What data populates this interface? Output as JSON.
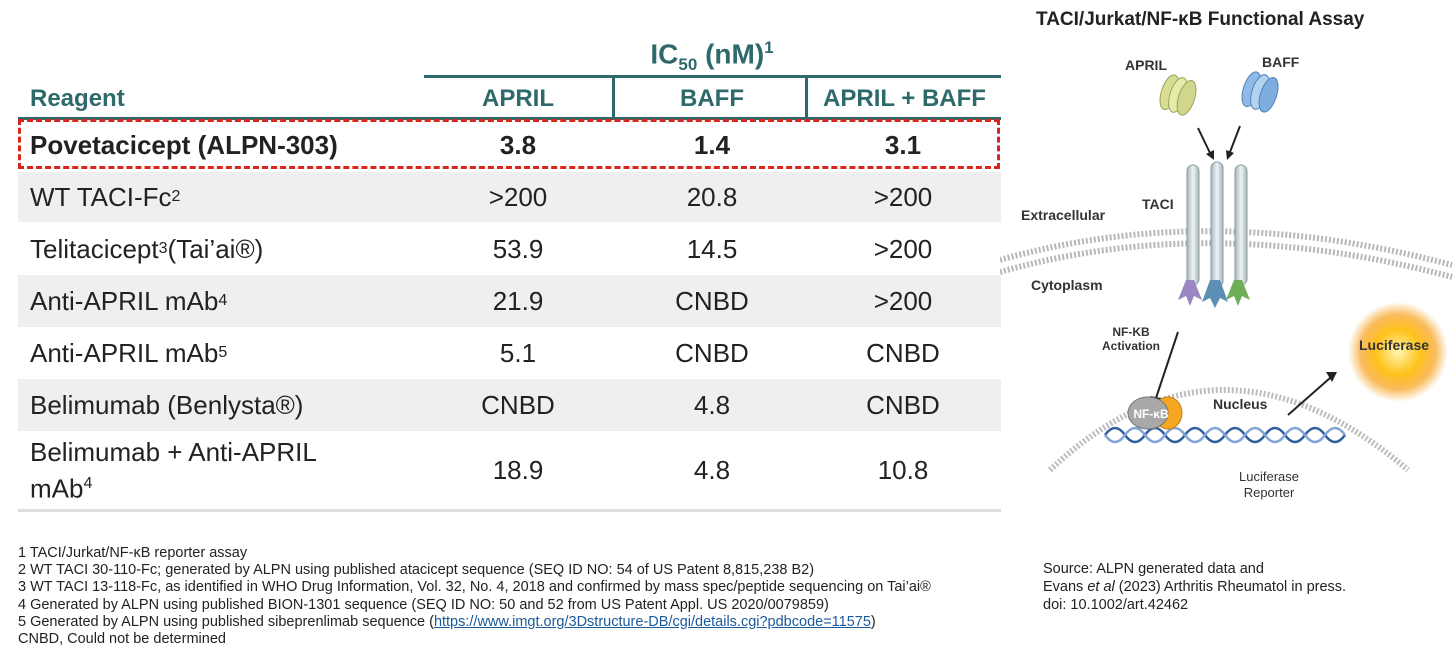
{
  "table": {
    "ic50_title": "IC",
    "ic50_sub": "50",
    "ic50_unit": " (nM)",
    "ic50_sup": "1",
    "headers": {
      "reagent": "Reagent",
      "april": "APRIL",
      "baff": "BAFF",
      "both": "APRIL + BAFF"
    },
    "rows": [
      {
        "name": "Povetacicept (ALPN-303)",
        "sup": "",
        "suffix": "",
        "april": "3.8",
        "baff": "1.4",
        "both": "3.1"
      },
      {
        "name": "WT TACI-Fc",
        "sup": "2",
        "suffix": "",
        "april": ">200",
        "baff": "20.8",
        "both": ">200"
      },
      {
        "name": "Telitacicept",
        "sup": "3",
        "suffix": " (Tai’ai®)",
        "april": "53.9",
        "baff": "14.5",
        "both": ">200"
      },
      {
        "name": "Anti-APRIL mAb",
        "sup": "4",
        "suffix": "",
        "april": "21.9",
        "baff": "CNBD",
        "both": ">200"
      },
      {
        "name": "Anti-APRIL mAb",
        "sup": "5",
        "suffix": "",
        "april": "5.1",
        "baff": "CNBD",
        "both": "CNBD"
      },
      {
        "name": "Belimumab (Benlysta®)",
        "sup": "",
        "suffix": "",
        "april": "CNBD",
        "baff": "4.8",
        "both": "CNBD"
      },
      {
        "name_line1": "Belimumab + Anti-APRIL",
        "name_line2": "mAb",
        "sup": "4",
        "april": "18.9",
        "baff": "4.8",
        "both": "10.8"
      }
    ]
  },
  "footnotes": [
    "1 TACI/Jurkat/NF-κB  reporter assay",
    "2 WT TACI 30-110-Fc; generated by ALPN using published atacicept sequence (SEQ ID NO: 54 of US Patent 8,815,238 B2)",
    "3 WT TACI 13-118-Fc, as identified in WHO Drug Information,  Vol. 32, No. 4, 2018 and confirmed by mass spec/peptide sequencing on Tai’ai®",
    "4 Generated by ALPN using published BION-1301 sequence (SEQ ID NO:  50 and 52 from US Patent Appl. US 2020/0079859)",
    "CNBD, Could not be determined"
  ],
  "footnote5": {
    "prefix": "5 Generated by ALPN using published sibeprenlimab sequence (",
    "link": "https://www.imgt.org/3Dstructure-DB/cgi/details.cgi?pdbcode=11575",
    "suffix": ")"
  },
  "diagram": {
    "title": "TACI/Jurkat/NF-κB Functional  Assay",
    "april": "APRIL",
    "baff": "BAFF",
    "taci": "TACI",
    "extracellular": "Extracellular",
    "cytoplasm": "Cytoplasm",
    "nfkb_activation_1": "NF-KB",
    "nfkb_activation_2": "Activation",
    "nfkb_complex": "NF-κB",
    "nucleus": "Nucleus",
    "luciferase": "Luciferase",
    "reporter_1": "Luciferase",
    "reporter_2": "Reporter"
  },
  "source": {
    "line1": "Source: ALPN generated data and",
    "line2_pre": "Evans ",
    "line2_italic": "et al",
    "line2_post": " (2023) Arthritis Rheumatol in press.",
    "line3": "doi: 10.1002/art.42462"
  },
  "colors": {
    "header_teal": "#2e6a6b",
    "highlight_red": "#d9261c",
    "row_shade": "#efefef",
    "link_blue": "#1a5a9c"
  }
}
